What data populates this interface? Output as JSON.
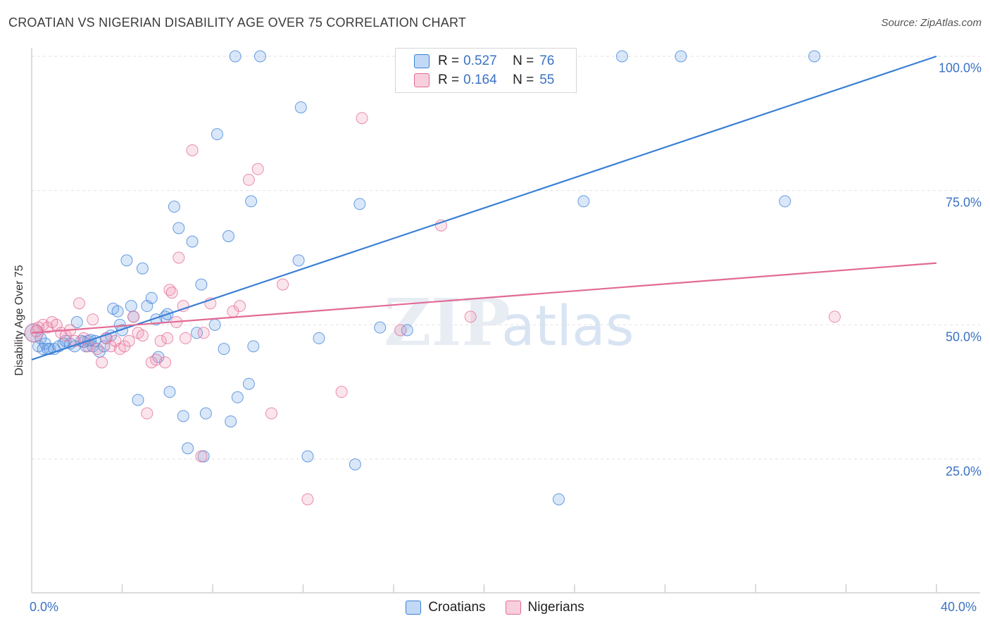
{
  "title": "CROATIAN VS NIGERIAN DISABILITY AGE OVER 75 CORRELATION CHART",
  "source": "Source: ZipAtlas.com",
  "watermark": "ZIPatlas",
  "colors": {
    "blue": "#3a7fd5",
    "blue_fill": "rgba(120,170,235,0.28)",
    "pink": "#e26a96",
    "pink_fill": "rgba(240,150,180,0.25)",
    "tick_text": "#3a72c4"
  },
  "legend": {
    "rows": [
      {
        "r_label": "R =",
        "r_value": "0.527",
        "n_label": "N =",
        "n_value": "76"
      },
      {
        "r_label": "R =",
        "r_value": "0.164",
        "n_label": "N =",
        "n_value": "55"
      }
    ]
  },
  "bottom_legend": [
    "Croatians",
    "Nigerians"
  ],
  "chart_data": {
    "type": "scatter",
    "xlabel": "",
    "ylabel": "Disability Age Over 75",
    "xlim": [
      0,
      40
    ],
    "ylim": [
      0,
      105
    ],
    "x_tick_labels": [
      "0.0%",
      "40.0%"
    ],
    "y_tick_labels": [
      "25.0%",
      "50.0%",
      "75.0%",
      "100.0%"
    ],
    "y_ticks": [
      25,
      50,
      75,
      100
    ],
    "grid": "horizontal dashed",
    "legend_placement": "top-center",
    "series": [
      {
        "name": "Croatians",
        "color": "#3a7fd5",
        "trend": {
          "x": [
            0,
            40
          ],
          "y": [
            43.5,
            100
          ]
        },
        "points": [
          [
            0.1,
            48.5
          ],
          [
            0.3,
            46
          ],
          [
            0.5,
            45.5
          ],
          [
            0.6,
            46.5
          ],
          [
            0.8,
            45.5
          ],
          [
            1,
            45.5
          ],
          [
            1.2,
            46
          ],
          [
            1.5,
            47
          ],
          [
            1.7,
            46.5
          ],
          [
            1.9,
            46
          ],
          [
            2,
            50.5
          ],
          [
            2.2,
            47
          ],
          [
            2.4,
            46
          ],
          [
            2.5,
            47
          ],
          [
            2.7,
            46
          ],
          [
            2.8,
            47
          ],
          [
            3,
            45
          ],
          [
            3.2,
            46
          ],
          [
            3.5,
            48
          ],
          [
            3.6,
            53
          ],
          [
            3.8,
            52.5
          ],
          [
            4,
            49
          ],
          [
            4.2,
            62
          ],
          [
            4.4,
            53.5
          ],
          [
            4.5,
            51.5
          ],
          [
            4.7,
            36
          ],
          [
            4.9,
            60.5
          ],
          [
            5.1,
            53.5
          ],
          [
            5.3,
            55
          ],
          [
            5.6,
            44
          ],
          [
            5.9,
            51.5
          ],
          [
            6.1,
            37.5
          ],
          [
            6.3,
            72
          ],
          [
            6.5,
            68
          ],
          [
            6.7,
            33
          ],
          [
            6.9,
            27
          ],
          [
            7.1,
            65.5
          ],
          [
            7.3,
            48.5
          ],
          [
            7.5,
            57.5
          ],
          [
            7.6,
            25.5
          ],
          [
            7.7,
            33.5
          ],
          [
            8.1,
            50
          ],
          [
            8.2,
            85.5
          ],
          [
            8.5,
            45.5
          ],
          [
            8.7,
            66.5
          ],
          [
            8.8,
            32
          ],
          [
            9.0,
            100
          ],
          [
            9.1,
            36.5
          ],
          [
            9.6,
            39
          ],
          [
            9.7,
            73
          ],
          [
            9.8,
            46
          ],
          [
            10.1,
            100
          ],
          [
            11.8,
            62
          ],
          [
            11.9,
            90.5
          ],
          [
            12.2,
            25.5
          ],
          [
            12.7,
            47.5
          ],
          [
            14.3,
            24
          ],
          [
            14.5,
            72.5
          ],
          [
            15.4,
            49.5
          ],
          [
            16.6,
            49
          ],
          [
            22,
            100
          ],
          [
            23.3,
            17.5
          ],
          [
            24.4,
            73
          ],
          [
            26.1,
            100
          ],
          [
            28.7,
            100
          ],
          [
            33.3,
            73
          ],
          [
            34.6,
            100
          ],
          [
            0.4,
            47.5
          ],
          [
            0.7,
            45.5
          ],
          [
            1.4,
            46.5
          ],
          [
            2.3,
            46.8
          ],
          [
            3.3,
            47.5
          ],
          [
            5.5,
            51
          ],
          [
            6.0,
            52
          ],
          [
            3.9,
            50
          ],
          [
            2.6,
            47.2
          ]
        ]
      },
      {
        "name": "Nigerians",
        "color": "#e26a96",
        "trend": {
          "x": [
            0,
            40
          ],
          "y": [
            48.5,
            61.5
          ]
        },
        "points": [
          [
            0.1,
            48.5
          ],
          [
            0.3,
            49.5
          ],
          [
            0.5,
            50
          ],
          [
            0.7,
            49.5
          ],
          [
            0.9,
            50.5
          ],
          [
            1.1,
            50
          ],
          [
            1.3,
            48.5
          ],
          [
            1.5,
            48
          ],
          [
            1.7,
            49
          ],
          [
            1.9,
            47
          ],
          [
            2.1,
            54
          ],
          [
            2.3,
            47.5
          ],
          [
            2.5,
            46
          ],
          [
            2.7,
            51
          ],
          [
            2.9,
            45.5
          ],
          [
            3.1,
            43
          ],
          [
            3.3,
            47.5
          ],
          [
            3.5,
            46
          ],
          [
            3.7,
            47
          ],
          [
            3.9,
            45.5
          ],
          [
            4.1,
            46
          ],
          [
            4.3,
            47
          ],
          [
            4.5,
            51.5
          ],
          [
            4.7,
            48.5
          ],
          [
            4.9,
            48
          ],
          [
            5.1,
            33.5
          ],
          [
            5.3,
            43
          ],
          [
            5.5,
            43.5
          ],
          [
            5.7,
            47
          ],
          [
            5.9,
            43
          ],
          [
            6.0,
            47.5
          ],
          [
            6.1,
            56.5
          ],
          [
            6.2,
            56
          ],
          [
            6.4,
            50.5
          ],
          [
            6.5,
            62.5
          ],
          [
            6.7,
            53.5
          ],
          [
            6.8,
            47.5
          ],
          [
            7.1,
            82.5
          ],
          [
            7.5,
            25.5
          ],
          [
            7.6,
            48.5
          ],
          [
            7.9,
            54
          ],
          [
            8.9,
            52.5
          ],
          [
            9.2,
            53.5
          ],
          [
            9.6,
            77
          ],
          [
            10,
            79
          ],
          [
            10.6,
            33.5
          ],
          [
            11.1,
            57.5
          ],
          [
            12.2,
            17.5
          ],
          [
            13.7,
            37.5
          ],
          [
            14.6,
            88.5
          ],
          [
            16.3,
            49
          ],
          [
            18.1,
            68.5
          ],
          [
            19.4,
            51.5
          ],
          [
            35.5,
            51.5
          ],
          [
            0.2,
            48.8
          ]
        ]
      }
    ]
  }
}
